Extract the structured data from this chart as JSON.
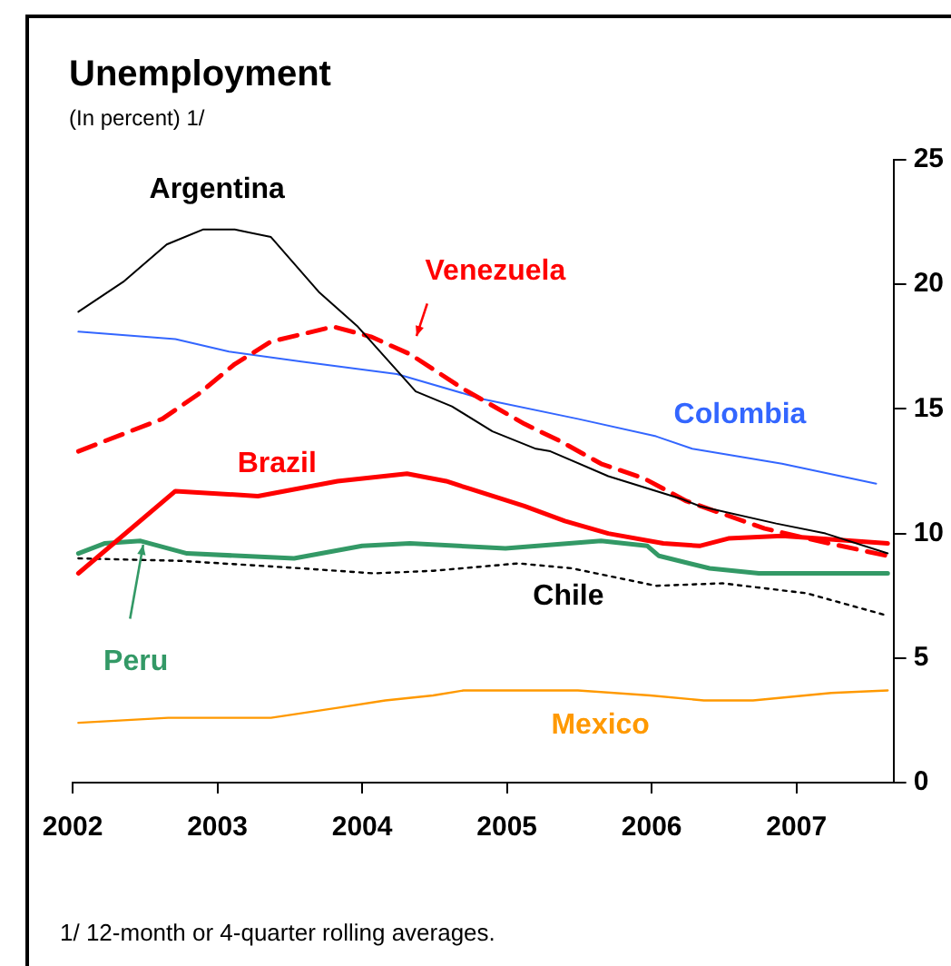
{
  "chart_data": {
    "type": "line",
    "title": "Unemployment",
    "subtitle": "(In percent) 1/",
    "annotations": [
      "1/ 12-month or 4-quarter rolling averages."
    ],
    "xlim": [
      2002,
      2007.67
    ],
    "xticks": [
      2002,
      2003,
      2004,
      2005,
      2006,
      2007
    ],
    "ylim": [
      0,
      25
    ],
    "yticks": [
      0,
      5,
      10,
      15,
      20,
      25
    ],
    "grid": false,
    "legend": false,
    "marker": "none",
    "series": [
      {
        "name": "Argentina",
        "color": "#000000",
        "line_style": "solid",
        "x": [
          2002.04,
          2002.35,
          2002.65,
          2002.9,
          2003.12,
          2003.37,
          2003.7,
          2003.97,
          2004.37,
          2004.62,
          2004.9,
          2005.2,
          2005.3,
          2005.7,
          2006.2,
          2006.33,
          2006.86,
          2007.2,
          2007.63
        ],
        "values": [
          18.9,
          20.1,
          21.6,
          22.2,
          22.2,
          21.9,
          19.7,
          18.3,
          15.7,
          15.1,
          14.1,
          13.4,
          13.3,
          12.3,
          11.4,
          11.1,
          10.4,
          10.0,
          9.2
        ]
      },
      {
        "name": "Venezuela",
        "color": "#ff0000",
        "line_style": "dashed",
        "x": [
          2002.04,
          2002.62,
          2002.87,
          2003.12,
          2003.37,
          2003.8,
          2004.06,
          2004.33,
          2004.7,
          2005.12,
          2005.37,
          2005.65,
          2005.95,
          2006.24,
          2006.78,
          2007.15,
          2007.63
        ],
        "values": [
          13.3,
          14.6,
          15.6,
          16.8,
          17.7,
          18.3,
          17.9,
          17.2,
          15.8,
          14.4,
          13.7,
          12.8,
          12.2,
          11.3,
          10.2,
          9.7,
          9.1
        ]
      },
      {
        "name": "Colombia",
        "color": "#3366ff",
        "line_style": "solid",
        "x": [
          2002.04,
          2002.71,
          2003.08,
          2003.58,
          2004.24,
          2004.83,
          2005.49,
          2006.03,
          2006.28,
          2006.9,
          2007.55
        ],
        "values": [
          18.1,
          17.8,
          17.3,
          16.9,
          16.4,
          15.4,
          14.6,
          13.9,
          13.4,
          12.8,
          12.0
        ]
      },
      {
        "name": "Brazil",
        "color": "#ff0000",
        "line_style": "solid",
        "x": [
          2002.04,
          2002.71,
          2003.28,
          2003.83,
          2004.31,
          2004.58,
          2004.74,
          2005.12,
          2005.4,
          2005.7,
          2006.08,
          2006.33,
          2006.53,
          2006.9,
          2007.63
        ],
        "values": [
          8.4,
          11.7,
          11.5,
          12.1,
          12.4,
          12.1,
          11.8,
          11.1,
          10.5,
          10.0,
          9.6,
          9.5,
          9.8,
          9.9,
          9.6
        ]
      },
      {
        "name": "Chile",
        "color": "#000000",
        "line_style": "dotted",
        "x": [
          2002.04,
          2002.75,
          2003.58,
          2004.08,
          2004.49,
          2005.08,
          2005.45,
          2006.03,
          2006.49,
          2007.07,
          2007.63
        ],
        "values": [
          9.0,
          8.9,
          8.6,
          8.4,
          8.5,
          8.8,
          8.6,
          7.9,
          8.0,
          7.6,
          6.7
        ]
      },
      {
        "name": "Peru",
        "color": "#339966",
        "line_style": "solid",
        "x": [
          2002.04,
          2002.22,
          2002.47,
          2002.79,
          2003.16,
          2003.53,
          2004.0,
          2004.33,
          2004.99,
          2005.65,
          2005.97,
          2006.05,
          2006.4,
          2006.74,
          2007.07,
          2007.63
        ],
        "values": [
          9.2,
          9.6,
          9.7,
          9.2,
          9.1,
          9.0,
          9.5,
          9.6,
          9.4,
          9.7,
          9.5,
          9.1,
          8.6,
          8.4,
          8.4,
          8.4
        ]
      },
      {
        "name": "Mexico",
        "color": "#ff9900",
        "line_style": "solid",
        "x": [
          2002.04,
          2002.35,
          2002.66,
          2003.37,
          2003.83,
          2004.16,
          2004.49,
          2004.7,
          2005.49,
          2005.99,
          2006.36,
          2006.7,
          2007.24,
          2007.63
        ],
        "values": [
          2.4,
          2.5,
          2.6,
          2.6,
          3.0,
          3.3,
          3.5,
          3.7,
          3.7,
          3.5,
          3.3,
          3.3,
          3.6,
          3.7
        ]
      }
    ]
  }
}
